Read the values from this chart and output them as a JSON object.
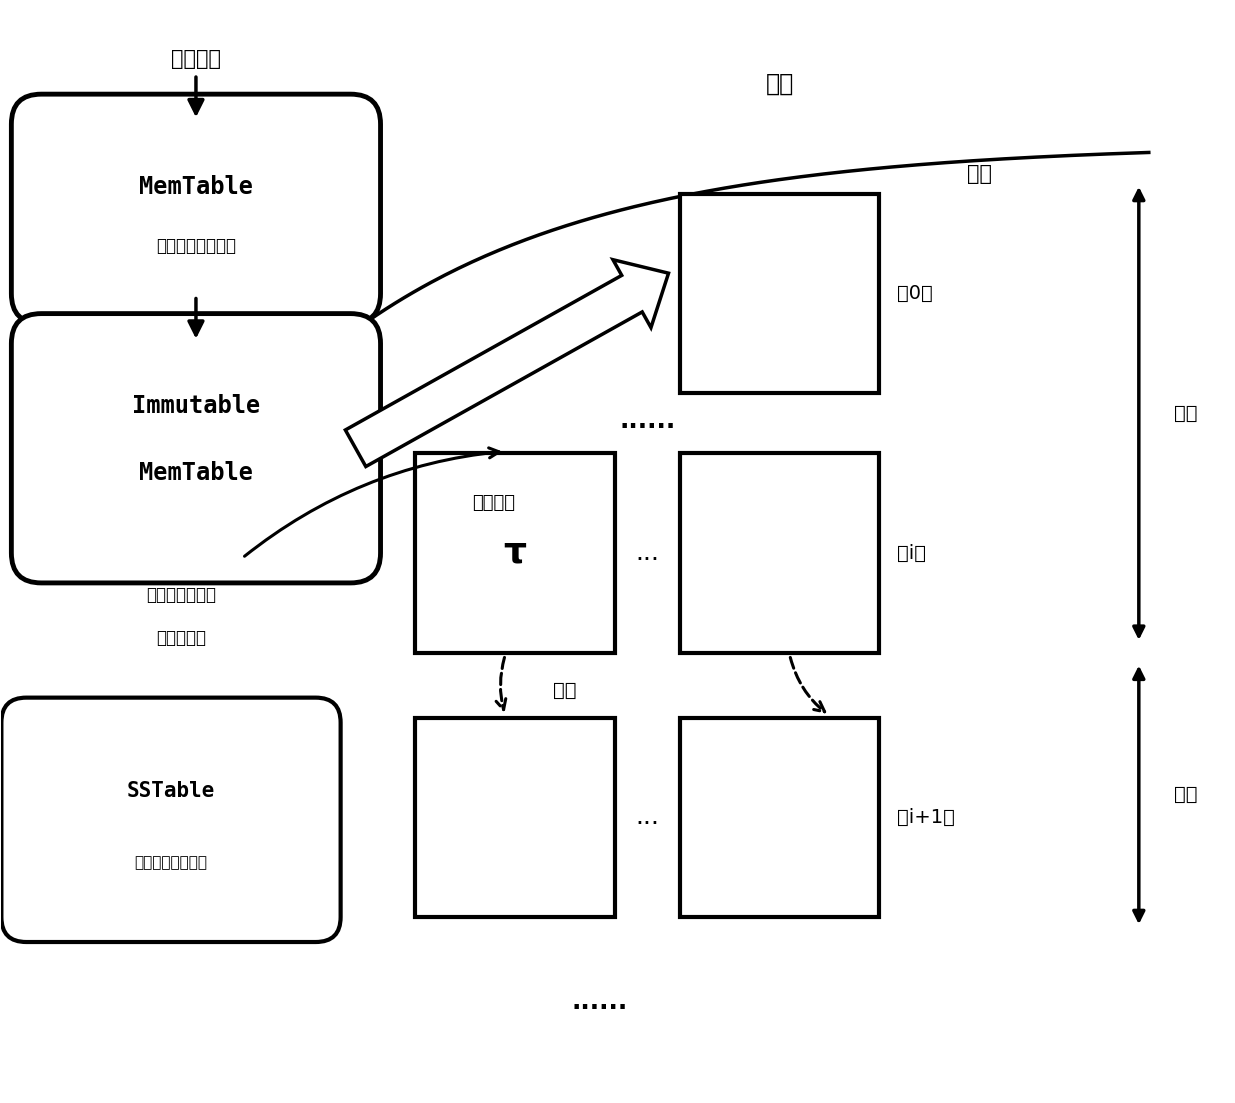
{
  "bg_color": "#ffffff",
  "title_user_write": "用户写入",
  "memtable_label1": "MemTable",
  "memtable_label2": "（内存存储结构）",
  "immutable_label1": "Immutable",
  "immutable_label2": "MemTable",
  "immutable_label3": "（不可更改内存）",
  "immutable_label4": "存储结构）",
  "immutable_sub1": "（不可更改内存",
  "immutable_sub2": "存储结构）",
  "sstable_label1": "SSTable",
  "sstable_label2": "（数据存储结构）",
  "write_storage_label": "写入存储",
  "merge_label": "合并",
  "memory_label": "内存",
  "storage_label": "存储",
  "level0_label": "第0层",
  "leveli_label": "第i层",
  "leveli1_label": "第i+1层",
  "upper_label": "上层",
  "lower_label": "下层",
  "dots_label": "......",
  "dots_small": "...",
  "tau_label": "τ"
}
